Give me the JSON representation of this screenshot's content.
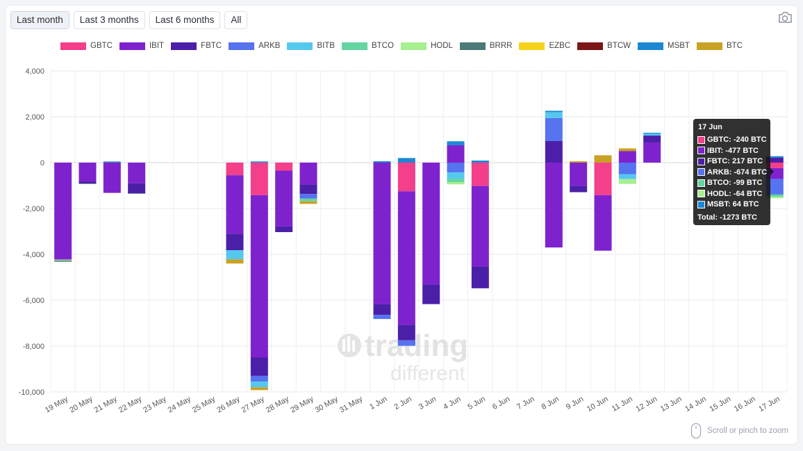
{
  "range_tabs": [
    {
      "label": "Last month",
      "active": true
    },
    {
      "label": "Last 3 months",
      "active": false
    },
    {
      "label": "Last 6 months",
      "active": false
    },
    {
      "label": "All",
      "active": false
    }
  ],
  "icons": {
    "screenshot": "camera-icon",
    "mouse": "mouse-icon"
  },
  "legend": [
    {
      "name": "GBTC",
      "color": "#f43f8a"
    },
    {
      "name": "IBIT",
      "color": "#7e22ce"
    },
    {
      "name": "FBTC",
      "color": "#4c1fa8"
    },
    {
      "name": "ARKB",
      "color": "#5673f0"
    },
    {
      "name": "BITB",
      "color": "#55c8ee"
    },
    {
      "name": "BTCO",
      "color": "#63d5a0"
    },
    {
      "name": "HODL",
      "color": "#a7f08f"
    },
    {
      "name": "BRRR",
      "color": "#4b7a78"
    },
    {
      "name": "EZBC",
      "color": "#f5d31a"
    },
    {
      "name": "BTCW",
      "color": "#7d1616"
    },
    {
      "name": "MSBT",
      "color": "#1c88d4"
    },
    {
      "name": "BTC",
      "color": "#c9a124"
    }
  ],
  "watermark": {
    "line1": "trading",
    "line2": "different"
  },
  "zoom_hint": "Scroll or pinch to zoom",
  "tooltip": {
    "title": "17 Jun",
    "rows": [
      {
        "text": "GBTC: -240 BTC",
        "color": "#f43f8a"
      },
      {
        "text": "IBIT: -477 BTC",
        "color": "#7e22ce"
      },
      {
        "text": "FBTC: 217 BTC",
        "color": "#4c1fa8"
      },
      {
        "text": "ARKB: -674 BTC",
        "color": "#5673f0"
      },
      {
        "text": "BTCO: -99 BTC",
        "color": "#63d5a0"
      },
      {
        "text": "HODL: -64 BTC",
        "color": "#a7f08f"
      },
      {
        "text": "MSBT: 64 BTC",
        "color": "#1c88d4"
      }
    ],
    "total": "Total: -1273 BTC"
  },
  "chart_data": {
    "type": "bar",
    "stacked": true,
    "title": "",
    "xlabel": "",
    "ylabel": "",
    "ylim": [
      -10000,
      4000
    ],
    "yticks": [
      4000,
      2000,
      0,
      -2000,
      -4000,
      -6000,
      -8000,
      -10000
    ],
    "ytick_labels": [
      "4,000",
      "2,000",
      "0",
      "-2,000",
      "-4,000",
      "-6,000",
      "-8,000",
      "-10,000"
    ],
    "grid": true,
    "legend_position": "top",
    "categories": [
      "19 May",
      "20 May",
      "21 May",
      "22 May",
      "23 May",
      "24 May",
      "25 May",
      "26 May",
      "27 May",
      "28 May",
      "29 May",
      "30 May",
      "31 May",
      "1 Jun",
      "2 Jun",
      "3 Jun",
      "4 Jun",
      "5 Jun",
      "6 Jun",
      "7 Jun",
      "8 Jun",
      "9 Jun",
      "10 Jun",
      "11 Jun",
      "12 Jun",
      "13 Jun",
      "14 Jun",
      "15 Jun",
      "16 Jun",
      "17 Jun"
    ],
    "series": [
      {
        "name": "GBTC",
        "color": "#f43f8a",
        "values": [
          0,
          0,
          0,
          0,
          0,
          0,
          0,
          -550,
          -1420,
          -350,
          0,
          0,
          0,
          0,
          -1250,
          0,
          0,
          -1020,
          0,
          0,
          0,
          0,
          -1420,
          0,
          0,
          0,
          0,
          0,
          0,
          -240
        ]
      },
      {
        "name": "IBIT",
        "color": "#7e22ce",
        "values": [
          -4230,
          -820,
          -1320,
          -900,
          0,
          0,
          0,
          -2550,
          -7080,
          -2430,
          -950,
          0,
          0,
          -6170,
          -5820,
          -5320,
          760,
          -3500,
          0,
          0,
          -3700,
          -1010,
          -2420,
          500,
          880,
          0,
          0,
          0,
          0,
          -477
        ]
      },
      {
        "name": "FBTC",
        "color": "#4c1fa8",
        "values": [
          0,
          -90,
          0,
          -440,
          0,
          0,
          0,
          -720,
          -800,
          -250,
          -420,
          0,
          0,
          -470,
          -680,
          -850,
          0,
          -960,
          0,
          0,
          940,
          -280,
          0,
          0,
          300,
          0,
          0,
          0,
          0,
          217
        ]
      },
      {
        "name": "ARKB",
        "color": "#5673f0",
        "values": [
          0,
          0,
          0,
          0,
          0,
          0,
          0,
          0,
          -250,
          0,
          -200,
          0,
          0,
          -180,
          -240,
          0,
          -430,
          0,
          0,
          0,
          1000,
          0,
          0,
          -510,
          0,
          0,
          0,
          0,
          0,
          -674
        ]
      },
      {
        "name": "BITB",
        "color": "#55c8ee",
        "values": [
          0,
          0,
          0,
          0,
          0,
          0,
          0,
          -400,
          -250,
          0,
          0,
          0,
          0,
          0,
          0,
          0,
          -280,
          0,
          0,
          0,
          260,
          0,
          0,
          -210,
          80,
          0,
          0,
          0,
          0,
          0
        ]
      },
      {
        "name": "BTCO",
        "color": "#63d5a0",
        "values": [
          0,
          0,
          0,
          0,
          0,
          0,
          0,
          0,
          0,
          0,
          -120,
          0,
          0,
          0,
          0,
          0,
          -140,
          0,
          0,
          0,
          0,
          0,
          0,
          0,
          0,
          0,
          0,
          0,
          0,
          -99
        ]
      },
      {
        "name": "HODL",
        "color": "#a7f08f",
        "values": [
          -40,
          0,
          0,
          0,
          0,
          0,
          0,
          0,
          0,
          0,
          0,
          0,
          0,
          0,
          0,
          0,
          -100,
          0,
          0,
          0,
          0,
          0,
          0,
          -210,
          0,
          0,
          0,
          0,
          0,
          -64
        ]
      },
      {
        "name": "BRRR",
        "color": "#4b7a78",
        "values": [
          -50,
          -20,
          20,
          -20,
          0,
          0,
          0,
          0,
          0,
          0,
          0,
          0,
          0,
          0,
          0,
          0,
          0,
          0,
          0,
          0,
          0,
          0,
          0,
          0,
          0,
          0,
          0,
          0,
          0,
          0
        ]
      },
      {
        "name": "EZBC",
        "color": "#f5d31a",
        "values": [
          0,
          0,
          0,
          0,
          0,
          0,
          0,
          0,
          0,
          0,
          0,
          0,
          0,
          0,
          0,
          0,
          0,
          0,
          0,
          0,
          0,
          0,
          0,
          0,
          0,
          0,
          0,
          0,
          0,
          0
        ]
      },
      {
        "name": "BTCW",
        "color": "#7d1616",
        "values": [
          0,
          0,
          0,
          0,
          0,
          0,
          0,
          0,
          0,
          0,
          0,
          0,
          0,
          0,
          0,
          0,
          0,
          0,
          0,
          0,
          0,
          0,
          0,
          0,
          0,
          0,
          0,
          0,
          0,
          0
        ]
      },
      {
        "name": "MSBT",
        "color": "#1c88d4",
        "values": [
          0,
          0,
          30,
          0,
          0,
          0,
          0,
          0,
          50,
          0,
          0,
          0,
          0,
          60,
          200,
          0,
          170,
          90,
          0,
          0,
          60,
          0,
          0,
          0,
          40,
          0,
          0,
          0,
          0,
          64
        ]
      },
      {
        "name": "BTC",
        "color": "#c9a124",
        "values": [
          0,
          0,
          0,
          0,
          0,
          0,
          0,
          -180,
          -120,
          0,
          -110,
          0,
          0,
          0,
          0,
          0,
          0,
          0,
          0,
          0,
          0,
          60,
          320,
          120,
          0,
          0,
          0,
          0,
          0,
          0
        ]
      }
    ]
  }
}
